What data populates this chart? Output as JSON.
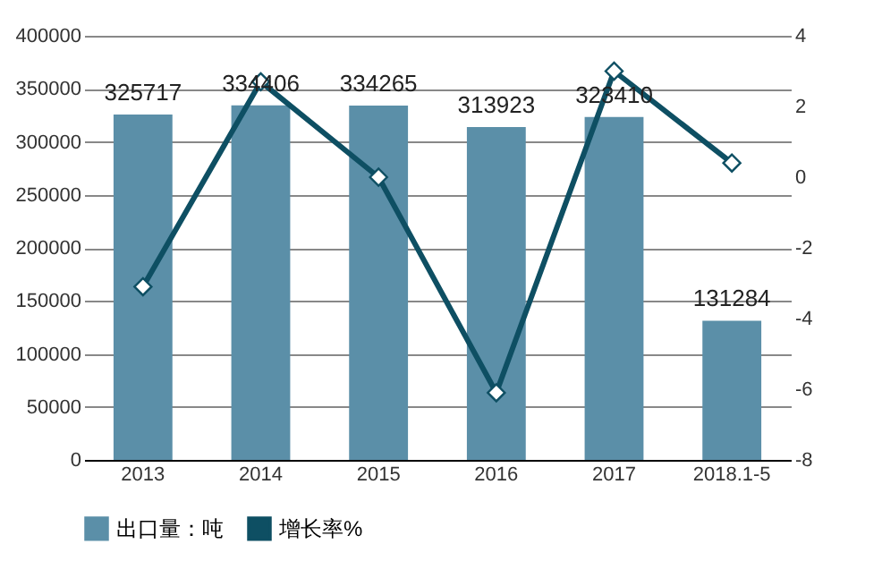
{
  "chart_data": {
    "type": "bar",
    "categories": [
      "2013",
      "2014",
      "2015",
      "2016",
      "2017",
      "2018.1-5"
    ],
    "series": [
      {
        "name": "出口量：吨",
        "type": "bar",
        "color": "#5b8fa8",
        "values": [
          325717,
          334406,
          334265,
          313923,
          323410,
          131284
        ],
        "value_labels": [
          "325717",
          "334406",
          "334265",
          "313923",
          "323410",
          "131284"
        ]
      },
      {
        "name": "增长率%",
        "type": "line",
        "axis": "y2",
        "color": "#0e4f63",
        "marker": "diamond",
        "values": [
          -3.1,
          2.7,
          0.0,
          -6.1,
          3.0,
          0.4
        ]
      }
    ],
    "ylim": [
      0,
      400000
    ],
    "yticks": [
      0,
      50000,
      100000,
      150000,
      200000,
      250000,
      300000,
      350000,
      400000
    ],
    "y2lim": [
      -8,
      4
    ],
    "y2ticks": [
      -8,
      -6,
      -4,
      -2,
      0,
      2,
      4
    ],
    "grid": "y",
    "legend": "bottom"
  }
}
